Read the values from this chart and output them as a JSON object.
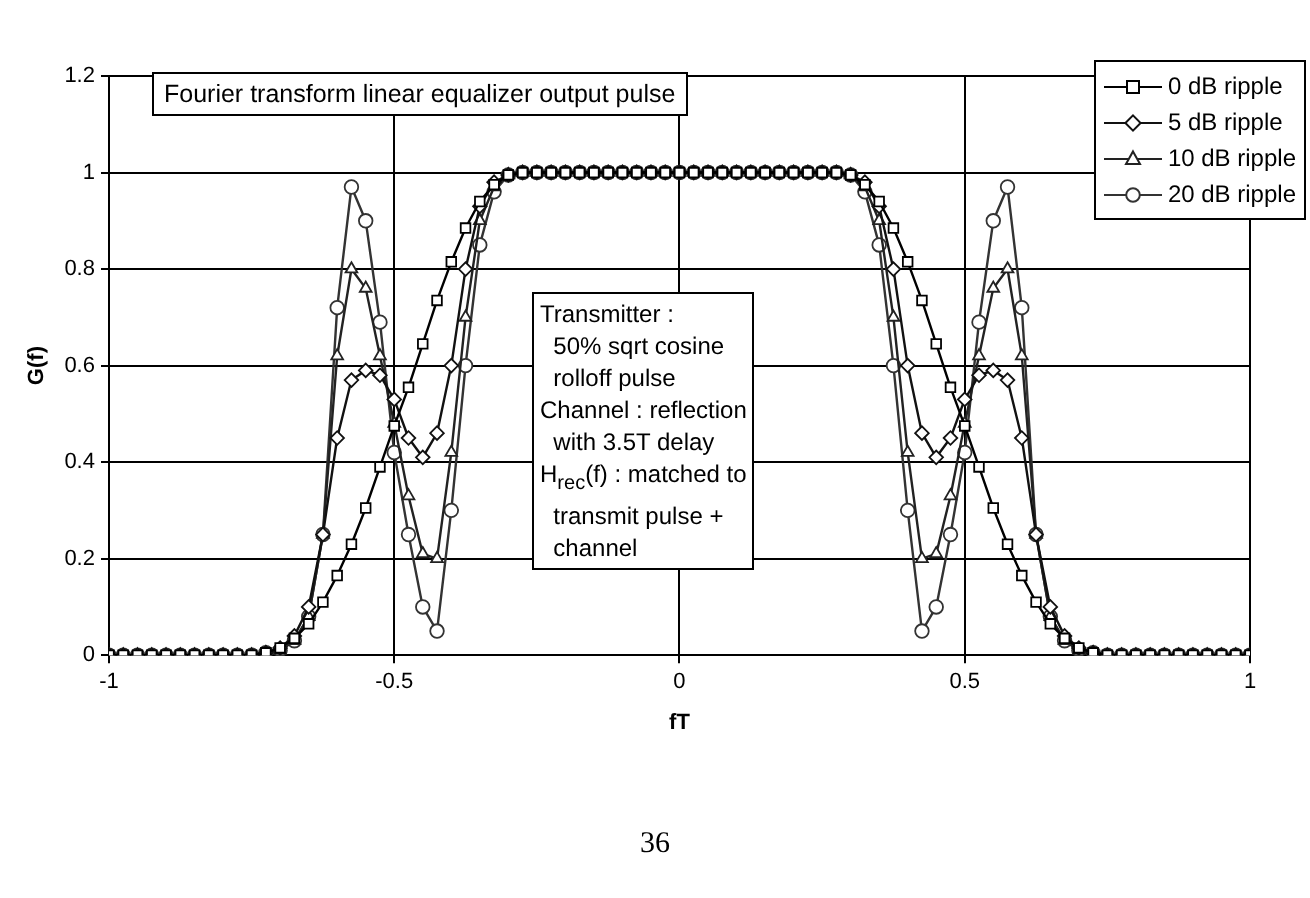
{
  "chart_data": {
    "type": "line",
    "title": "Fourier transform linear equalizer output pulse",
    "xlabel": "fT",
    "ylabel": "G(f)",
    "x": [
      -1,
      -0.975,
      -0.95,
      -0.925,
      -0.9,
      -0.875,
      -0.85,
      -0.825,
      -0.8,
      -0.775,
      -0.75,
      -0.725,
      -0.7,
      -0.675,
      -0.65,
      -0.625,
      -0.6,
      -0.575,
      -0.55,
      -0.525,
      -0.5,
      -0.475,
      -0.45,
      -0.425,
      -0.4,
      -0.375,
      -0.35,
      -0.325,
      -0.3,
      -0.275,
      -0.25,
      -0.225,
      -0.2,
      -0.175,
      -0.15,
      -0.125,
      -0.1,
      -0.075,
      -0.05,
      -0.025,
      0,
      0.025,
      0.05,
      0.075,
      0.1,
      0.125,
      0.15,
      0.175,
      0.2,
      0.225,
      0.25,
      0.275,
      0.3,
      0.325,
      0.35,
      0.375,
      0.4,
      0.425,
      0.45,
      0.475,
      0.5,
      0.525,
      0.55,
      0.575,
      0.6,
      0.625,
      0.65,
      0.675,
      0.7,
      0.725,
      0.75,
      0.775,
      0.8,
      0.825,
      0.85,
      0.875,
      0.9,
      0.925,
      0.95,
      0.975,
      1
    ],
    "series": [
      {
        "name": "0 dB ripple",
        "color": "#000000",
        "marker": "square",
        "values": [
          0,
          0,
          0,
          0,
          0,
          0,
          0,
          0,
          0,
          0,
          0,
          0.005,
          0.015,
          0.035,
          0.065,
          0.11,
          0.165,
          0.23,
          0.305,
          0.39,
          0.475,
          0.555,
          0.645,
          0.735,
          0.815,
          0.885,
          0.94,
          0.975,
          0.995,
          1,
          1,
          1,
          1,
          1,
          1,
          1,
          1,
          1,
          1,
          1,
          1,
          1,
          1,
          1,
          1,
          1,
          1,
          1,
          1,
          1,
          1,
          1,
          0.995,
          0.975,
          0.94,
          0.885,
          0.815,
          0.735,
          0.645,
          0.555,
          0.475,
          0.39,
          0.305,
          0.23,
          0.165,
          0.11,
          0.065,
          0.035,
          0.015,
          0.005,
          0,
          0,
          0,
          0,
          0,
          0,
          0,
          0,
          0,
          0,
          0
        ]
      },
      {
        "name": "5 dB ripple",
        "color": "#111111",
        "marker": "diamond",
        "values": [
          0,
          0,
          0,
          0,
          0,
          0,
          0,
          0,
          0,
          0,
          0,
          0.005,
          0.015,
          0.04,
          0.1,
          0.25,
          0.45,
          0.57,
          0.59,
          0.58,
          0.53,
          0.45,
          0.41,
          0.46,
          0.6,
          0.8,
          0.93,
          0.98,
          0.995,
          1,
          1,
          1,
          1,
          1,
          1,
          1,
          1,
          1,
          1,
          1,
          1,
          1,
          1,
          1,
          1,
          1,
          1,
          1,
          1,
          1,
          1,
          1,
          0.995,
          0.98,
          0.93,
          0.8,
          0.6,
          0.46,
          0.41,
          0.45,
          0.53,
          0.58,
          0.59,
          0.57,
          0.45,
          0.25,
          0.1,
          0.04,
          0.015,
          0.005,
          0,
          0,
          0,
          0,
          0,
          0,
          0,
          0,
          0,
          0,
          0
        ]
      },
      {
        "name": "10 dB ripple",
        "color": "#222222",
        "marker": "triangle",
        "values": [
          0,
          0,
          0,
          0,
          0,
          0,
          0,
          0,
          0,
          0,
          0,
          0.005,
          0.01,
          0.03,
          0.08,
          0.25,
          0.62,
          0.8,
          0.76,
          0.62,
          0.48,
          0.33,
          0.21,
          0.2,
          0.42,
          0.7,
          0.9,
          0.97,
          0.995,
          1,
          1,
          1,
          1,
          1,
          1,
          1,
          1,
          1,
          1,
          1,
          1,
          1,
          1,
          1,
          1,
          1,
          1,
          1,
          1,
          1,
          1,
          1,
          0.995,
          0.97,
          0.9,
          0.7,
          0.42,
          0.2,
          0.21,
          0.33,
          0.48,
          0.62,
          0.76,
          0.8,
          0.62,
          0.25,
          0.08,
          0.03,
          0.01,
          0.005,
          0,
          0,
          0,
          0,
          0,
          0,
          0,
          0,
          0,
          0,
          0
        ]
      },
      {
        "name": "20 dB ripple",
        "color": "#333333",
        "marker": "circle",
        "values": [
          0,
          0,
          0,
          0,
          0,
          0,
          0,
          0,
          0,
          0,
          0,
          0.005,
          0.01,
          0.03,
          0.08,
          0.25,
          0.72,
          0.97,
          0.9,
          0.69,
          0.42,
          0.25,
          0.1,
          0.05,
          0.3,
          0.6,
          0.85,
          0.96,
          0.995,
          1,
          1,
          1,
          1,
          1,
          1,
          1,
          1,
          1,
          1,
          1,
          1,
          1,
          1,
          1,
          1,
          1,
          1,
          1,
          1,
          1,
          1,
          1,
          0.995,
          0.96,
          0.85,
          0.6,
          0.3,
          0.05,
          0.1,
          0.25,
          0.42,
          0.69,
          0.9,
          0.97,
          0.72,
          0.25,
          0.08,
          0.03,
          0.01,
          0.005,
          0,
          0,
          0,
          0,
          0,
          0,
          0,
          0,
          0,
          0,
          0
        ]
      }
    ],
    "xlim": [
      -1,
      1
    ],
    "xticks": [
      -1,
      -0.5,
      0,
      0.5,
      1
    ],
    "ylim": [
      0,
      1.2
    ],
    "yticks": [
      0,
      0.2,
      0.4,
      0.6,
      0.8,
      1,
      1.2
    ],
    "grid": true,
    "legend": "top right",
    "line_style": "solid",
    "annotations": [
      "Transmitter :\n  50% sqrt cosine\n  rolloff pulse\nChannel : reflection\n  with 3.5T delay\nH$_{rec}$(f) : matched to\n  transmit pulse +\n  channel",
      "36"
    ]
  }
}
